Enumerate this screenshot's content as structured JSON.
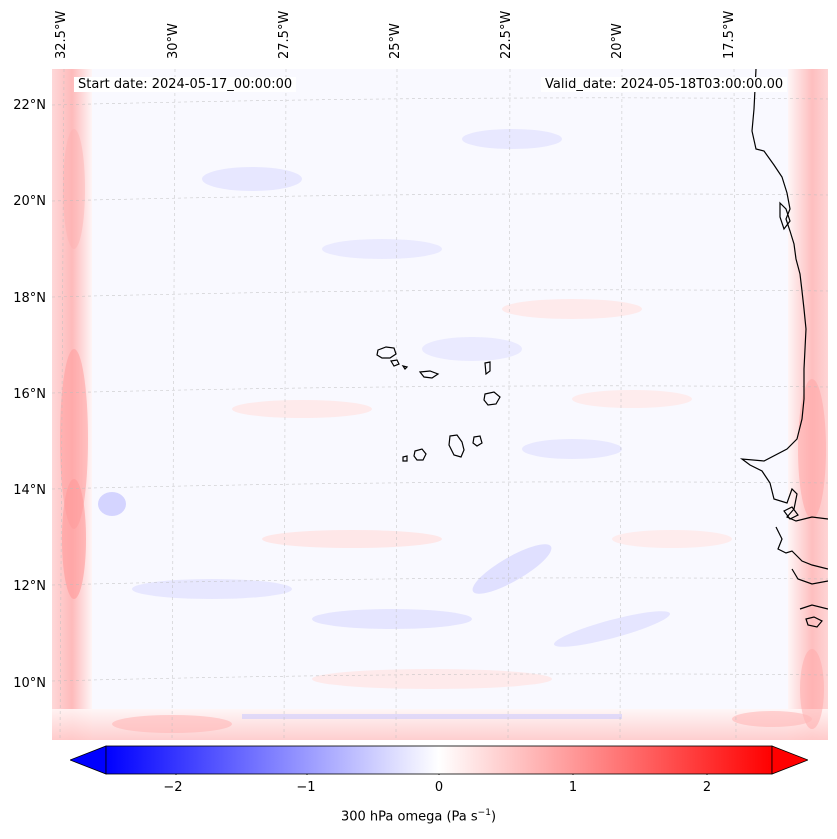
{
  "map": {
    "lon_labels": [
      "32.5°W",
      "30°W",
      "27.5°W",
      "25°W",
      "22.5°W",
      "20°W",
      "17.5°W"
    ],
    "lat_labels": [
      "22°N",
      "20°N",
      "18°N",
      "16°N",
      "14°N",
      "12°N",
      "10°N"
    ],
    "start_date": "Start date: 2024-05-17_00:00:00",
    "valid_date": "Valid_date: 2024-05-18T03:00:00.00",
    "field_colormap": "bwr",
    "coastline_color": "#000000"
  },
  "colorbar": {
    "ticks": [
      "−2",
      "−1",
      "0",
      "1",
      "2"
    ],
    "label": "300 hPa omega (Pa s",
    "label_sup": "−1",
    "label_tail": ")",
    "min": -2.7,
    "max": 2.7,
    "colors": {
      "low": "#0000ff",
      "mid": "#ffffff",
      "high": "#ff0000"
    }
  }
}
